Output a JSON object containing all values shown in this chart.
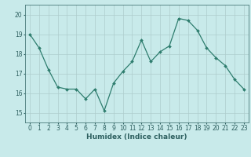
{
  "x": [
    0,
    1,
    2,
    3,
    4,
    5,
    6,
    7,
    8,
    9,
    10,
    11,
    12,
    13,
    14,
    15,
    16,
    17,
    18,
    19,
    20,
    21,
    22,
    23
  ],
  "y": [
    19.0,
    18.3,
    17.2,
    16.3,
    16.2,
    16.2,
    15.7,
    16.2,
    15.1,
    16.5,
    17.1,
    17.6,
    18.7,
    17.6,
    18.1,
    18.4,
    19.8,
    19.7,
    19.2,
    18.3,
    17.8,
    17.4,
    16.7,
    16.2
  ],
  "line_color": "#2e7d6e",
  "marker": "D",
  "marker_size": 2.0,
  "bg_color": "#c8eaea",
  "grid_color": "#aecccc",
  "axes_color": "#4a7a7a",
  "tick_color": "#2e6060",
  "xlabel": "Humidex (Indice chaleur)",
  "ylim": [
    14.5,
    20.5
  ],
  "xlim": [
    -0.5,
    23.5
  ],
  "yticks": [
    15,
    16,
    17,
    18,
    19,
    20
  ],
  "xticks": [
    0,
    1,
    2,
    3,
    4,
    5,
    6,
    7,
    8,
    9,
    10,
    11,
    12,
    13,
    14,
    15,
    16,
    17,
    18,
    19,
    20,
    21,
    22,
    23
  ],
  "xlabel_fontsize": 6.5,
  "tick_fontsize": 5.5,
  "linewidth": 0.9
}
